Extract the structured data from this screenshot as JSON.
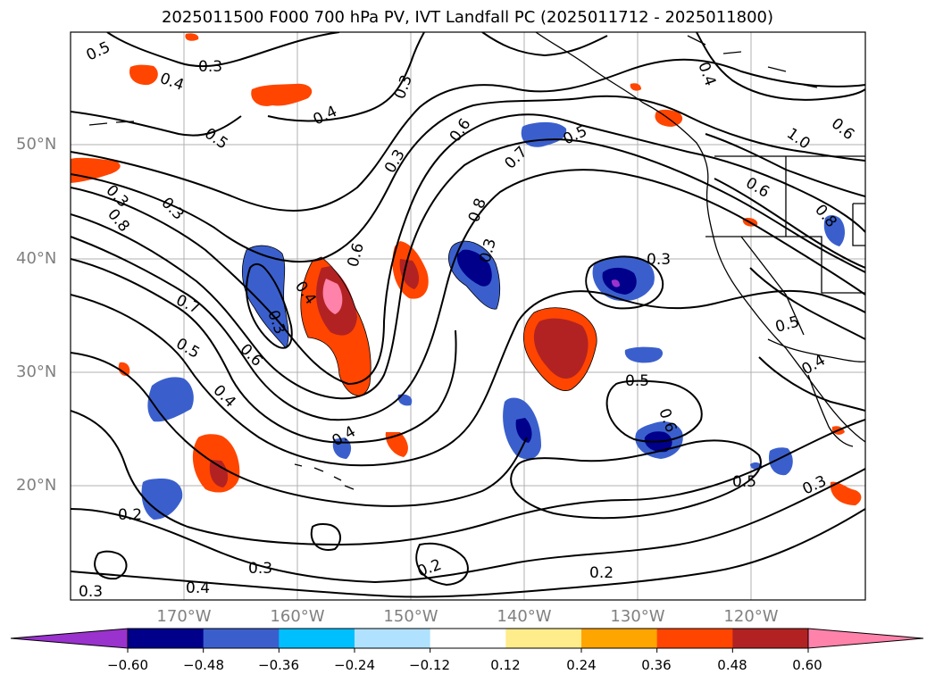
{
  "title": "2025011500 F000 700 hPa PV, IVT Landfall PC (2025011712 - 2025011800)",
  "axes": {
    "lat_ticks": [
      "50°N",
      "40°N",
      "30°N",
      "20°N"
    ],
    "lon_ticks": [
      "170°W",
      "160°W",
      "150°W",
      "140°W",
      "130°W",
      "120°W"
    ]
  },
  "contour_labels": [
    "0.5",
    "0.3",
    "0.4",
    "0.4",
    "0.5",
    "0.3",
    "0.6",
    "0.7",
    "0.8",
    "0.3",
    "0.6",
    "0.3",
    "0.7",
    "0.5",
    "0.6",
    "0.5",
    "0.4",
    "0.3",
    "0.5",
    "0.6",
    "0.3",
    "0.4",
    "0.2",
    "0.3",
    "0.4",
    "0.3",
    "0.2",
    "0.2",
    "0.5",
    "0.3",
    "0.4",
    "0.5",
    "0.4",
    "0.3",
    "0.8",
    "0.3",
    "0.4",
    "1.0",
    "0.6",
    "0.8",
    "0.6"
  ],
  "colorbar": {
    "colors": [
      "#9a32cd",
      "#00008b",
      "#3a5fcd",
      "#00bfff",
      "#b0e2ff",
      "#ffffff",
      "#ffec8b",
      "#ffa500",
      "#ff4500",
      "#b22222",
      "#ff82ab"
    ],
    "tick_labels": [
      "−0.60",
      "−0.48",
      "−0.36",
      "−0.24",
      "−0.12",
      "0.12",
      "0.24",
      "0.36",
      "0.48",
      "0.60"
    ]
  }
}
